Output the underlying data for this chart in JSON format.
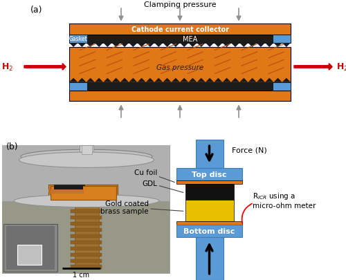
{
  "orange_color": "#E07818",
  "blue_color": "#5B9BD5",
  "black_color": "#000000",
  "gold_color": "#E8B800",
  "red_color": "#CC0000",
  "white_color": "#FFFFFF",
  "bg_color": "#FFFFFF",
  "gray_photo": "#A0A0A0",
  "gray_dark": "#606060",
  "label_a": "(a)",
  "label_b": "(b)",
  "top_label": "Clamping pressure",
  "cathode_label": "Cathode current collector",
  "mea_label": "MEA",
  "gasket_label": "Gasket",
  "gas_label": "Gas pressure",
  "h2_label": "H$_2$",
  "force_label": "Force (N)",
  "top_disc_label": "Top disc",
  "bottom_disc_label": "Bottom disc",
  "cu_foil_label": "Cu foil",
  "gdl_label": "GDL",
  "gold_label": "Gold coated\nbrass sample",
  "ricr_label": "R$_{ICR}$ using a\nmicro-ohm meter",
  "scale_label": "1 cm",
  "serration_color": "#1a1a1a",
  "arrow_gray": "#909090"
}
